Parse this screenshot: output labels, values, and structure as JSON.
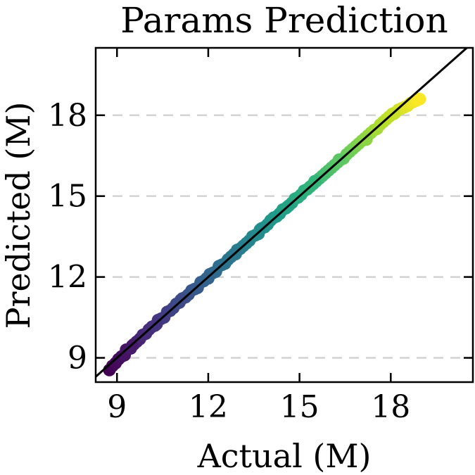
{
  "chart_data": {
    "type": "scatter",
    "title": "Params Prediction",
    "xlabel": "Actual (M)",
    "ylabel": "Predicted (M)",
    "xlim": [
      8.3,
      20.7
    ],
    "ylim": [
      8.1,
      20.5
    ],
    "x_ticks": [
      9,
      12,
      15,
      18
    ],
    "y_ticks": [
      9,
      12,
      15,
      18
    ],
    "grid": "y-dashed",
    "reference_line": "y = x",
    "colormap": "viridis",
    "colormap_stops": [
      "#440154",
      "#482878",
      "#3e4989",
      "#31688e",
      "#26828e",
      "#1f9e89",
      "#35b779",
      "#6ece58",
      "#b5de2b",
      "#fde725"
    ],
    "points": [
      [
        8.75,
        8.55
      ],
      [
        8.85,
        8.7
      ],
      [
        8.95,
        8.8
      ],
      [
        9.05,
        8.95
      ],
      [
        9.15,
        9.05
      ],
      [
        9.25,
        9.1
      ],
      [
        9.3,
        9.3
      ],
      [
        9.45,
        9.35
      ],
      [
        9.55,
        9.5
      ],
      [
        9.65,
        9.6
      ],
      [
        9.75,
        9.7
      ],
      [
        9.85,
        9.85
      ],
      [
        9.95,
        9.9
      ],
      [
        10.05,
        10.05
      ],
      [
        10.15,
        10.15
      ],
      [
        10.25,
        10.2
      ],
      [
        10.35,
        10.4
      ],
      [
        10.45,
        10.45
      ],
      [
        10.55,
        10.5
      ],
      [
        10.65,
        10.7
      ],
      [
        10.75,
        10.75
      ],
      [
        10.85,
        10.85
      ],
      [
        10.95,
        11.0
      ],
      [
        11.05,
        11.05
      ],
      [
        11.15,
        11.2
      ],
      [
        11.25,
        11.25
      ],
      [
        11.35,
        11.35
      ],
      [
        11.45,
        11.5
      ],
      [
        11.55,
        11.55
      ],
      [
        11.65,
        11.6
      ],
      [
        11.75,
        11.8
      ],
      [
        11.85,
        11.85
      ],
      [
        11.95,
        11.95
      ],
      [
        12.05,
        12.1
      ],
      [
        12.15,
        12.15
      ],
      [
        12.25,
        12.2
      ],
      [
        12.35,
        12.4
      ],
      [
        12.45,
        12.45
      ],
      [
        12.55,
        12.5
      ],
      [
        12.65,
        12.65
      ],
      [
        12.75,
        12.75
      ],
      [
        12.85,
        12.85
      ],
      [
        12.95,
        13.0
      ],
      [
        13.05,
        13.05
      ],
      [
        13.15,
        13.15
      ],
      [
        13.25,
        13.25
      ],
      [
        13.35,
        13.35
      ],
      [
        13.45,
        13.5
      ],
      [
        13.55,
        13.55
      ],
      [
        13.65,
        13.6
      ],
      [
        13.75,
        13.8
      ],
      [
        13.85,
        13.85
      ],
      [
        13.95,
        13.95
      ],
      [
        14.05,
        14.1
      ],
      [
        14.15,
        14.2
      ],
      [
        14.25,
        14.25
      ],
      [
        14.35,
        14.35
      ],
      [
        14.45,
        14.5
      ],
      [
        14.55,
        14.55
      ],
      [
        14.65,
        14.65
      ],
      [
        14.75,
        14.75
      ],
      [
        14.85,
        14.9
      ],
      [
        14.95,
        14.95
      ],
      [
        15.05,
        15.05
      ],
      [
        15.15,
        15.2
      ],
      [
        15.25,
        15.25
      ],
      [
        15.35,
        15.35
      ],
      [
        15.45,
        15.45
      ],
      [
        15.55,
        15.55
      ],
      [
        15.65,
        15.65
      ],
      [
        15.75,
        15.75
      ],
      [
        15.85,
        15.85
      ],
      [
        15.95,
        15.95
      ],
      [
        16.05,
        16.05
      ],
      [
        16.15,
        16.15
      ],
      [
        16.25,
        16.25
      ],
      [
        16.35,
        16.35
      ],
      [
        16.45,
        16.4
      ],
      [
        16.55,
        16.55
      ],
      [
        16.65,
        16.65
      ],
      [
        16.75,
        16.75
      ],
      [
        16.85,
        16.85
      ],
      [
        16.95,
        16.95
      ],
      [
        17.05,
        17.05
      ],
      [
        17.15,
        17.15
      ],
      [
        17.25,
        17.25
      ],
      [
        17.35,
        17.35
      ],
      [
        17.45,
        17.45
      ],
      [
        17.55,
        17.5
      ],
      [
        17.65,
        17.65
      ],
      [
        17.75,
        17.75
      ],
      [
        17.85,
        17.85
      ],
      [
        17.95,
        17.95
      ],
      [
        18.05,
        18.05
      ],
      [
        18.15,
        18.1
      ],
      [
        18.25,
        18.2
      ],
      [
        18.35,
        18.25
      ],
      [
        18.45,
        18.3
      ],
      [
        18.55,
        18.35
      ],
      [
        18.65,
        18.45
      ],
      [
        18.75,
        18.5
      ],
      [
        18.85,
        18.55
      ],
      [
        18.95,
        18.6
      ],
      [
        9.5,
        9.45
      ],
      [
        10.3,
        10.25
      ],
      [
        11.1,
        11.15
      ],
      [
        12.0,
        11.95
      ],
      [
        12.9,
        12.85
      ],
      [
        13.7,
        13.75
      ],
      [
        14.6,
        14.6
      ],
      [
        15.5,
        15.55
      ],
      [
        16.3,
        16.35
      ],
      [
        17.2,
        17.1
      ],
      [
        18.1,
        18.05
      ],
      [
        18.9,
        18.6
      ]
    ]
  }
}
